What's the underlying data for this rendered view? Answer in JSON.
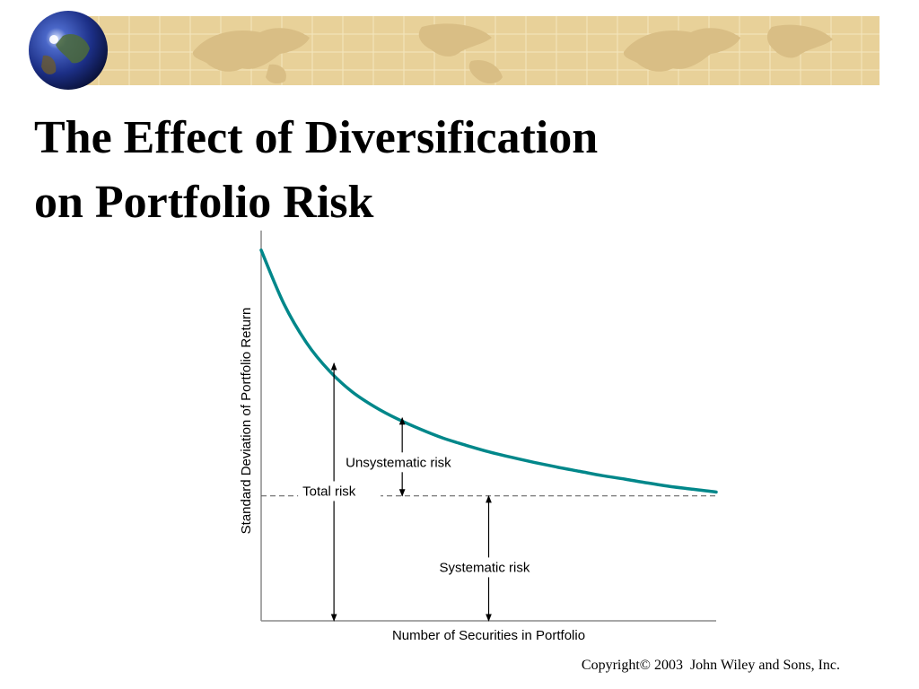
{
  "slide": {
    "title_line1": "The Effect of Diversification",
    "title_line2": "on Portfolio Risk",
    "copyright": "Copyright© 2003  John Wiley and Sons, Inc."
  },
  "colors": {
    "banner_parchment": "#e8d199",
    "banner_land": "#d9be85",
    "banner_grid": "#f4e6be",
    "curve": "#00878a",
    "axis": "#8a8a8a",
    "text": "#000000"
  },
  "icons": [
    "globe-icon",
    "world-map-banner"
  ],
  "chart_data": {
    "type": "line",
    "title": "",
    "xlabel": "Number of Securities in Portfolio",
    "ylabel": "Standard Deviation of Portfolio Return",
    "xlim": [
      0,
      10
    ],
    "ylim": [
      0,
      10
    ],
    "ticks": false,
    "grid": false,
    "series": [
      {
        "x": [
          0,
          0.5,
          1,
          1.5,
          2,
          2.5,
          3,
          3.5,
          4,
          4.5,
          5,
          5.5,
          6,
          6.5,
          7,
          7.5,
          8,
          8.5,
          9,
          9.5,
          10
        ],
        "y": [
          9.5,
          8.12,
          7.12,
          6.4,
          5.87,
          5.48,
          5.17,
          4.91,
          4.68,
          4.5,
          4.33,
          4.19,
          4.06,
          3.94,
          3.83,
          3.72,
          3.63,
          3.53,
          3.44,
          3.37,
          3.3
        ]
      }
    ],
    "reference_line": {
      "y": 3.2,
      "style": "dashed"
    },
    "annotations": [
      {
        "text": "Total risk",
        "x": 1.6,
        "y_from": 0,
        "y_to": 6.6
      },
      {
        "text": "Unsystematic risk",
        "x": 3.1,
        "y_from": 3.2,
        "y_to": 5.2
      },
      {
        "text": "Systematic risk",
        "x": 5.0,
        "y_from": 0,
        "y_to": 3.2
      }
    ]
  }
}
